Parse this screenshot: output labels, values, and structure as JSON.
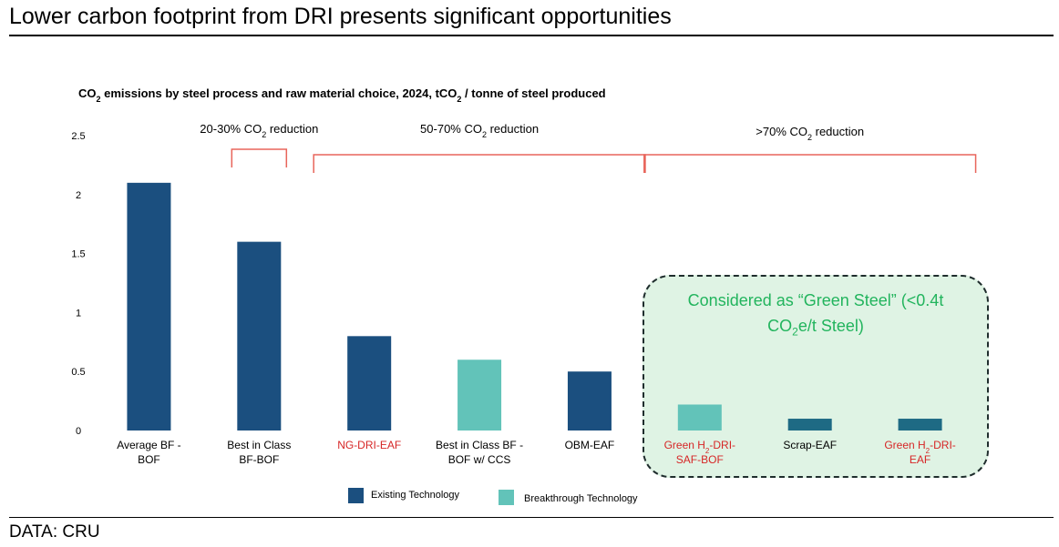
{
  "slide": {
    "title": "Lower carbon footprint from DRI presents significant opportunities",
    "source": "DATA: CRU"
  },
  "colors": {
    "existing": "#1b4f7f",
    "breakthrough": "#62c3b9",
    "breakthrough_dark": "#5bbfab",
    "highlight_text": "#d62626",
    "bracket": "#e8655b",
    "green_text": "#22b45d"
  },
  "green_box": {
    "line1": "Considered as “Green Steel” (<0.4t",
    "line2_pre": "CO",
    "line2_sub": "2",
    "line2_post": "e/t Steel)"
  },
  "chart_data": {
    "type": "bar",
    "title_parts": [
      {
        "t": "CO"
      },
      {
        "t": "2",
        "sub": true
      },
      {
        "t": " emissions by steel process and raw material choice, 2024, tCO"
      },
      {
        "t": "2",
        "sub": true
      },
      {
        "t": " / tonne of steel produced"
      }
    ],
    "ylim": [
      0,
      2.5
    ],
    "yticks": [
      0,
      0.5,
      1,
      1.5,
      2,
      2.5
    ],
    "ytick_labels": [
      "0",
      "0.5",
      "1",
      "1.5",
      "2",
      "2.5"
    ],
    "categories": [
      {
        "lines": [
          [
            {
              "t": "Average BF -"
            }
          ],
          [
            {
              "t": "BOF"
            }
          ]
        ],
        "value": 2.1,
        "series": "existing",
        "highlight": false
      },
      {
        "lines": [
          [
            {
              "t": "Best in Class"
            }
          ],
          [
            {
              "t": "BF-BOF"
            }
          ]
        ],
        "value": 1.6,
        "series": "existing",
        "highlight": false
      },
      {
        "lines": [
          [
            {
              "t": "NG-DRI-EAF"
            }
          ]
        ],
        "value": 0.8,
        "series": "existing",
        "highlight": true
      },
      {
        "lines": [
          [
            {
              "t": "Best in Class BF -"
            }
          ],
          [
            {
              "t": "BOF w/ CCS"
            }
          ]
        ],
        "value": 0.6,
        "series": "breakthrough",
        "highlight": false
      },
      {
        "lines": [
          [
            {
              "t": "OBM-EAF"
            }
          ]
        ],
        "value": 0.5,
        "series": "existing",
        "highlight": false
      },
      {
        "lines": [
          [
            {
              "t": "Green H"
            },
            {
              "t": "2",
              "sub": true
            },
            {
              "t": "-DRI-"
            }
          ],
          [
            {
              "t": "SAF-BOF"
            }
          ]
        ],
        "value": 0.22,
        "series": "breakthrough",
        "highlight": true
      },
      {
        "lines": [
          [
            {
              "t": "Scrap-EAF"
            }
          ]
        ],
        "value": 0.1,
        "series": "existing_teal",
        "highlight": false
      },
      {
        "lines": [
          [
            {
              "t": "Green H"
            },
            {
              "t": "2",
              "sub": true
            },
            {
              "t": "-DRI-"
            }
          ],
          [
            {
              "t": "EAF"
            }
          ]
        ],
        "value": 0.1,
        "series": "existing_teal",
        "highlight": true
      }
    ],
    "annotations": [
      {
        "parts": [
          {
            "t": "20-30% CO"
          },
          {
            "t": "2",
            "sub": true
          },
          {
            "t": " reduction"
          }
        ],
        "from": 1,
        "to": 1
      },
      {
        "parts": [
          {
            "t": "50-70% CO"
          },
          {
            "t": "2",
            "sub": true
          },
          {
            "t": " reduction"
          }
        ],
        "from": 2,
        "to": 4
      },
      {
        "parts": [
          {
            "t": ">70% CO"
          },
          {
            "t": "2",
            "sub": true
          },
          {
            "t": " reduction"
          }
        ],
        "from": 5,
        "to": 7
      }
    ],
    "legend": [
      {
        "label": "Existing Technology",
        "series": "existing"
      },
      {
        "label": "Breakthrough Technology",
        "series": "breakthrough"
      }
    ]
  }
}
